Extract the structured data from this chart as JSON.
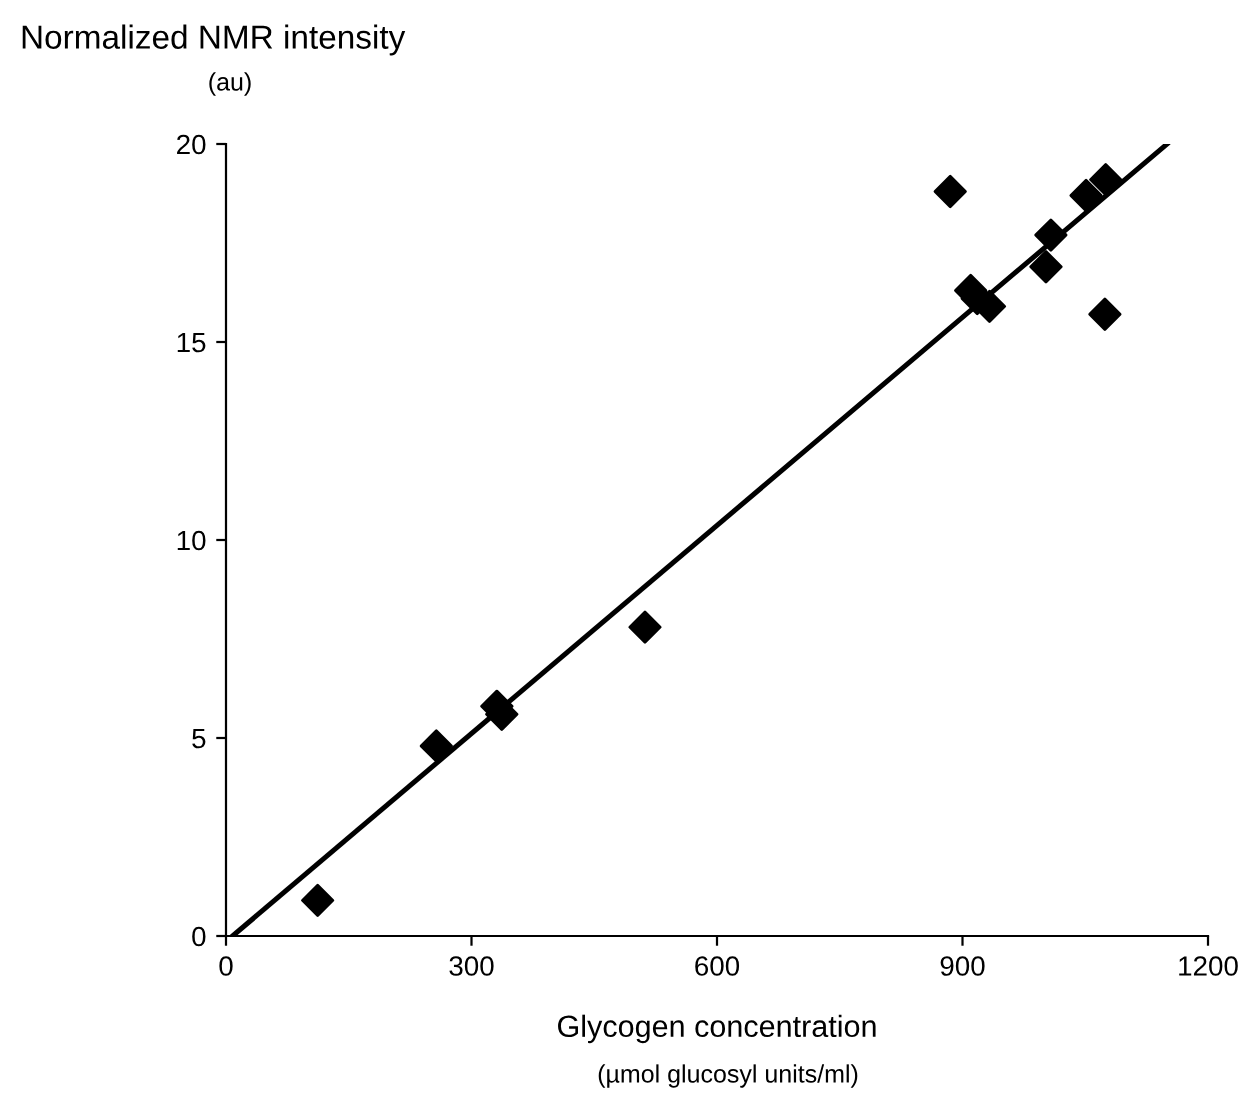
{
  "chart_data": {
    "type": "scatter",
    "ylabel": "Normalized NMR intensity\n(au)",
    "xlabel": "Glycogen concentration",
    "annotations": [
      "(µmol glucosyl units/ml)"
    ],
    "series": [
      {
        "color": "#000000",
        "marker": "diamond",
        "x": [
          112,
          257,
          331,
          337,
          512,
          885,
          910,
          918,
          933,
          1002,
          1008,
          1051,
          1074,
          1075
        ],
        "values": [
          0.9,
          4.8,
          5.8,
          5.6,
          7.8,
          18.8,
          16.3,
          16.1,
          15.9,
          16.9,
          17.7,
          18.7,
          15.7,
          19.1
        ]
      },
      {
        "type": "line",
        "color": "#000000",
        "x": [
          8,
          1150
        ],
        "values": [
          0,
          20
        ]
      }
    ],
    "xlim": [
      0,
      1200
    ],
    "ylim": [
      0,
      20
    ],
    "xticks": [
      0,
      300,
      600,
      900,
      1200
    ],
    "yticks": [
      0,
      5,
      10,
      15,
      20
    ],
    "grid": false,
    "legend": false
  }
}
